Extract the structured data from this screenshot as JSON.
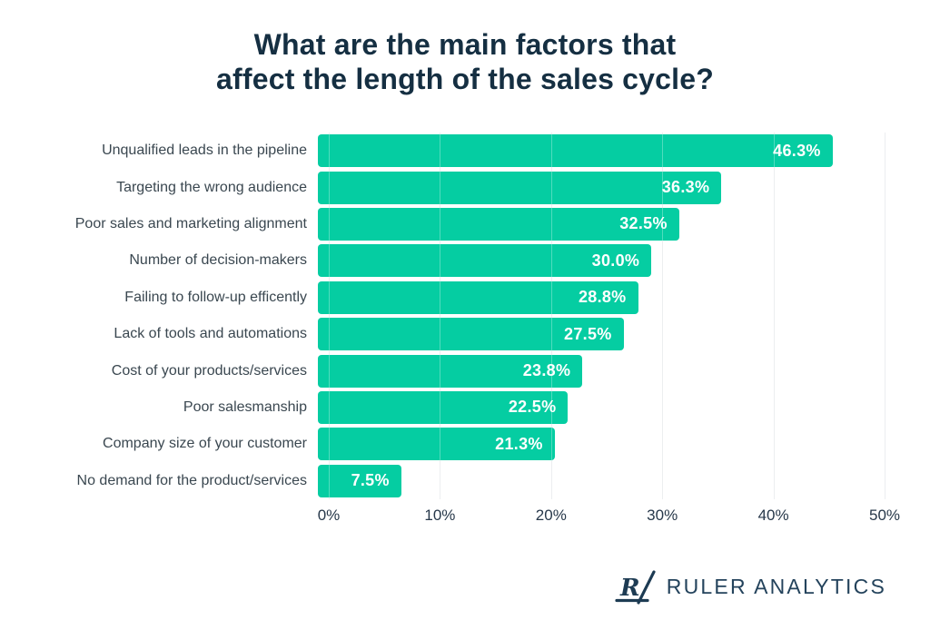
{
  "chart_data": {
    "type": "bar",
    "orientation": "horizontal",
    "title": "What are the main factors that affect the length of the sales cycle?",
    "title_lines": [
      "What are the main factors that",
      "affect the length of the sales cycle?"
    ],
    "categories": [
      "Unqualified leads in the pipeline",
      "Targeting the wrong audience",
      "Poor sales and marketing alignment",
      "Number of decision-makers",
      "Failing to follow-up efficently",
      "Lack of tools and automations",
      "Cost of your products/services",
      "Poor salesmanship",
      "Company size of your customer",
      "No demand for the product/services"
    ],
    "values": [
      46.3,
      36.3,
      32.5,
      30.0,
      28.8,
      27.5,
      23.8,
      22.5,
      21.3,
      7.5
    ],
    "value_labels": [
      "46.3%",
      "36.3%",
      "32.5%",
      "30.0%",
      "28.8%",
      "27.5%",
      "23.8%",
      "22.5%",
      "21.3%",
      "7.5%"
    ],
    "x_ticks": [
      "0%",
      "10%",
      "20%",
      "30%",
      "40%",
      "50%"
    ],
    "xlim": [
      0,
      50
    ],
    "xlabel": "",
    "ylabel": "",
    "grid": true,
    "legend": false,
    "bar_color": "#05CDA2"
  },
  "colors": {
    "title": "#152F42",
    "category_label": "#3A4750",
    "tick_label": "#27384A",
    "bar": "#05CDA2",
    "gridline": "#E4E7EA",
    "value_text": "#FFFFFF",
    "logo": "#24435C"
  },
  "branding": {
    "logo_text": "RULER ANALYTICS",
    "logo_icon": "ruler-r-slash-icon"
  }
}
